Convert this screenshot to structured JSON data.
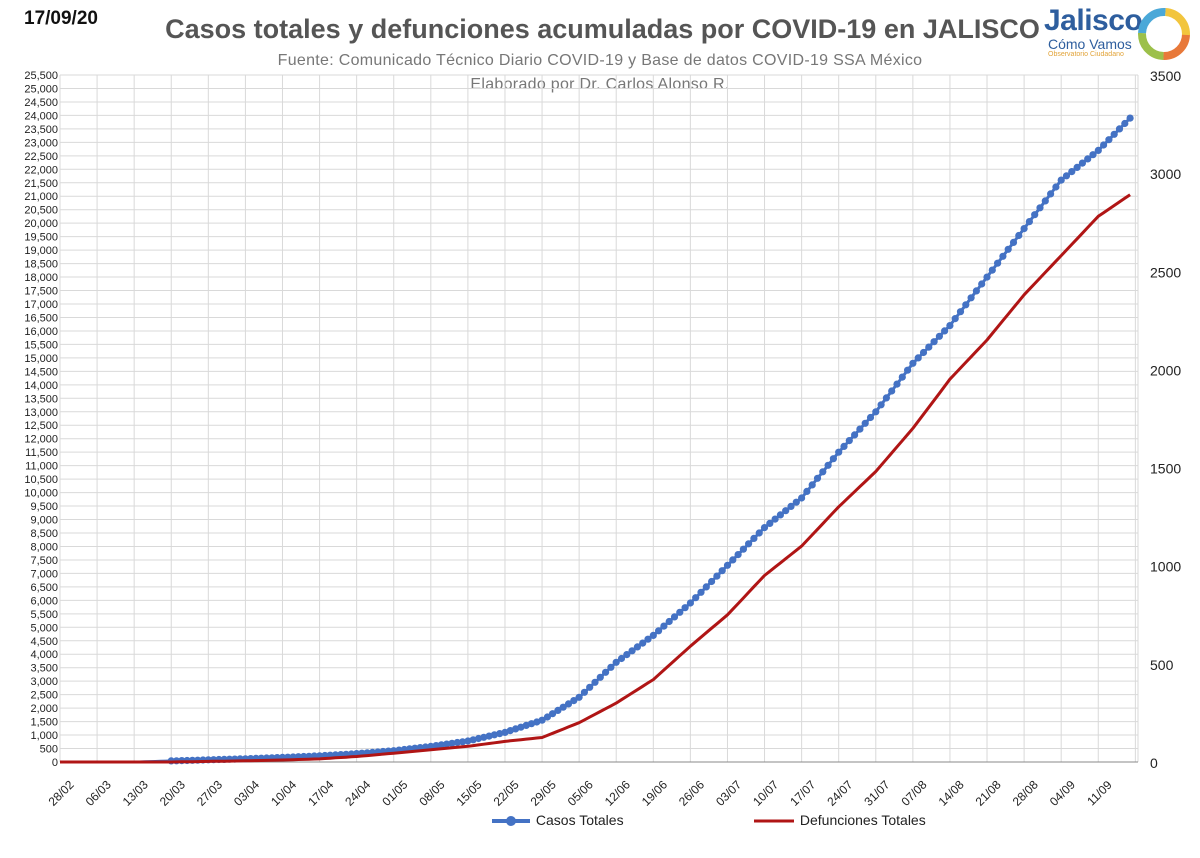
{
  "header": {
    "date": "17/09/20",
    "title": "Casos totales y defunciones acumuladas por COVID-19 en JALISCO",
    "subtitle_1": "Fuente: Comunicado Técnico Diario COVID-19 y Base de datos COVID-19 SSA México",
    "subtitle_2": "Elaborado por Dr. Carlos Alonso R."
  },
  "logo": {
    "name": "Jalisco",
    "subtitle": "Cómo Vamos",
    "tagline": "Observatorio Ciudadano",
    "icon": "ring-logo-icon"
  },
  "colors": {
    "casos": "#4472c4",
    "defunciones": "#b01515",
    "grid": "#d9d9d9"
  },
  "chart_data": {
    "type": "line",
    "x_tick_labels": [
      "28/02",
      "06/03",
      "13/03",
      "20/03",
      "27/03",
      "03/04",
      "10/04",
      "17/04",
      "24/04",
      "01/05",
      "08/05",
      "15/05",
      "22/05",
      "29/05",
      "05/06",
      "12/06",
      "19/06",
      "26/06",
      "03/07",
      "10/07",
      "17/07",
      "24/07",
      "31/07",
      "07/08",
      "14/08",
      "21/08",
      "28/08",
      "04/09",
      "11/09"
    ],
    "x_range": [
      "28/02",
      "17/09"
    ],
    "ylim_left": [
      0,
      25500
    ],
    "ylim_right": [
      0,
      3500
    ],
    "grid": true,
    "legend_position": "bottom",
    "series": [
      {
        "name": "Casos Totales",
        "axis": "left",
        "marker": "circle",
        "points": [
          [
            "28/02",
            0
          ],
          [
            "14/03",
            0
          ],
          [
            "20/03",
            40
          ],
          [
            "27/03",
            80
          ],
          [
            "03/04",
            120
          ],
          [
            "10/04",
            170
          ],
          [
            "17/04",
            230
          ],
          [
            "24/04",
            310
          ],
          [
            "01/05",
            420
          ],
          [
            "08/05",
            580
          ],
          [
            "15/05",
            780
          ],
          [
            "22/05",
            1100
          ],
          [
            "29/05",
            1550
          ],
          [
            "05/06",
            2400
          ],
          [
            "12/06",
            3700
          ],
          [
            "19/06",
            4700
          ],
          [
            "26/06",
            5900
          ],
          [
            "03/07",
            7300
          ],
          [
            "10/07",
            8700
          ],
          [
            "17/07",
            9800
          ],
          [
            "24/07",
            11500
          ],
          [
            "31/07",
            13000
          ],
          [
            "07/08",
            14800
          ],
          [
            "14/08",
            16200
          ],
          [
            "21/08",
            18000
          ],
          [
            "28/08",
            19800
          ],
          [
            "04/09",
            21600
          ],
          [
            "11/09",
            22700
          ],
          [
            "17/09",
            23900
          ]
        ]
      },
      {
        "name": "Defunciones Totales",
        "axis": "right",
        "marker": "none",
        "points": [
          [
            "28/02",
            0
          ],
          [
            "20/03",
            0
          ],
          [
            "27/03",
            3
          ],
          [
            "03/04",
            6
          ],
          [
            "10/04",
            10
          ],
          [
            "17/04",
            16
          ],
          [
            "24/04",
            28
          ],
          [
            "01/05",
            45
          ],
          [
            "08/05",
            62
          ],
          [
            "15/05",
            80
          ],
          [
            "22/05",
            105
          ],
          [
            "29/05",
            125
          ],
          [
            "05/06",
            200
          ],
          [
            "12/06",
            300
          ],
          [
            "19/06",
            420
          ],
          [
            "26/06",
            590
          ],
          [
            "03/07",
            750
          ],
          [
            "10/07",
            950
          ],
          [
            "17/07",
            1100
          ],
          [
            "24/07",
            1300
          ],
          [
            "31/07",
            1480
          ],
          [
            "07/08",
            1700
          ],
          [
            "14/08",
            1950
          ],
          [
            "21/08",
            2150
          ],
          [
            "28/08",
            2380
          ],
          [
            "04/09",
            2580
          ],
          [
            "11/09",
            2780
          ],
          [
            "17/09",
            2890
          ]
        ]
      }
    ]
  }
}
